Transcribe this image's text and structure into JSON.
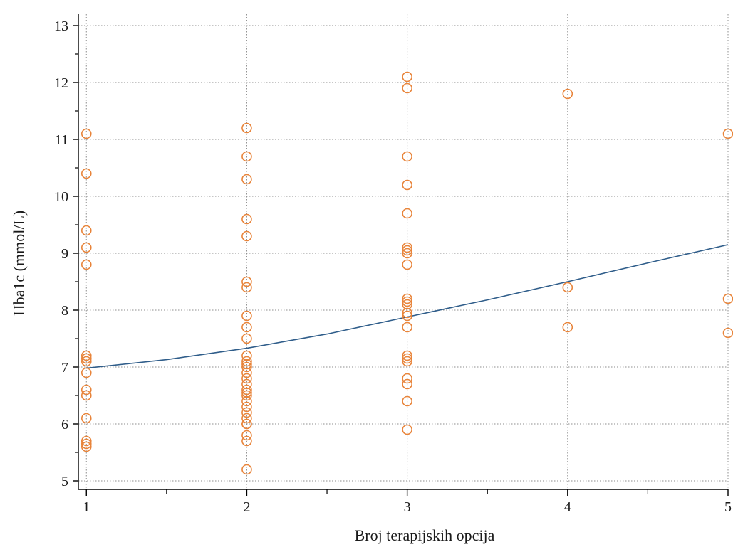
{
  "chart_data": {
    "type": "scatter",
    "title": "",
    "xlabel": "Broj terapijskih opcija",
    "ylabel": "Hba1c (mmol/L)",
    "xlim": [
      0.95,
      5.0
    ],
    "ylim": [
      4.85,
      13.2
    ],
    "x_ticks": [
      1,
      2,
      3,
      4,
      5
    ],
    "x_minor_ticks": [
      1.5,
      2.5,
      3.5,
      4.5
    ],
    "y_ticks": [
      5,
      6,
      7,
      8,
      9,
      10,
      11,
      12,
      13
    ],
    "y_minor_ticks": [
      5.5,
      6.5,
      7.5,
      8.5,
      9.5,
      10.5,
      11.5,
      12.5
    ],
    "grid": true,
    "marker": "hollow-circle",
    "colors": {
      "points": "#e8843a",
      "curve": "#2f5d8a",
      "axes": "#000000",
      "grid": "#8c8c8c"
    },
    "series": [
      {
        "kind": "points",
        "x": [
          1,
          1,
          1,
          1,
          1,
          1,
          1,
          1,
          1,
          1,
          1,
          1,
          1,
          1,
          1,
          2,
          2,
          2,
          2,
          2,
          2,
          2,
          2,
          2,
          2,
          2,
          2,
          2,
          2,
          2,
          2,
          2,
          2,
          2,
          2,
          2,
          2,
          2,
          2,
          2,
          2,
          2,
          2,
          2,
          3,
          3,
          3,
          3,
          3,
          3,
          3,
          3,
          3,
          3,
          3,
          3,
          3,
          3,
          3,
          3,
          3,
          3,
          3,
          3,
          3,
          3,
          4,
          4,
          4,
          5,
          5,
          5
        ],
        "y": [
          11.1,
          10.4,
          9.4,
          9.1,
          8.8,
          7.2,
          7.1,
          6.9,
          6.6,
          6.5,
          6.1,
          5.7,
          5.6,
          5.65,
          7.15,
          11.2,
          10.7,
          10.3,
          9.6,
          9.3,
          8.5,
          8.4,
          7.9,
          7.7,
          7.5,
          7.2,
          7.1,
          7.0,
          6.9,
          6.8,
          6.7,
          6.6,
          6.5,
          6.4,
          6.3,
          6.2,
          6.1,
          6.0,
          5.8,
          5.7,
          5.2,
          6.0,
          6.55,
          7.05,
          12.1,
          11.9,
          10.7,
          10.2,
          9.7,
          9.1,
          9.0,
          8.8,
          8.2,
          8.1,
          7.95,
          7.9,
          7.7,
          7.2,
          7.1,
          6.8,
          6.7,
          6.4,
          5.9,
          9.05,
          8.15,
          7.15,
          11.8,
          8.4,
          7.7,
          11.1,
          8.2,
          7.6
        ]
      },
      {
        "kind": "fit-curve",
        "x": [
          1,
          1.5,
          2,
          2.5,
          3,
          3.5,
          4,
          4.5,
          5
        ],
        "y": [
          6.98,
          7.13,
          7.33,
          7.58,
          7.88,
          8.18,
          8.5,
          8.83,
          9.15
        ]
      }
    ]
  }
}
